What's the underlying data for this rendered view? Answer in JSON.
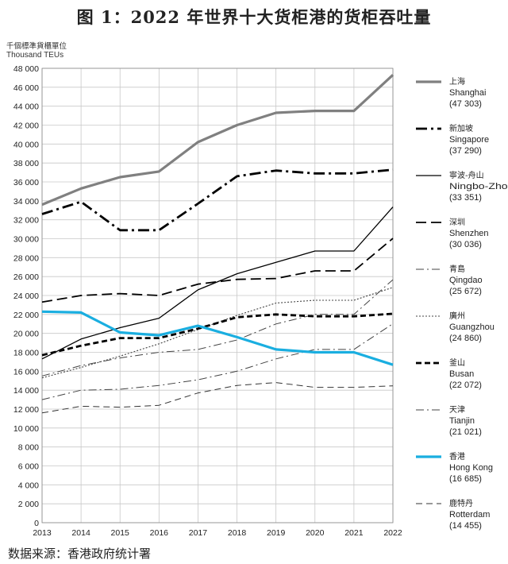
{
  "title": "图 1：2022 年世界十大货柜港的货柜吞吐量",
  "unit_cn": "千個標準貨櫃單位",
  "unit_en": "Thousand TEUs",
  "source": "数据来源：香港政府统计署",
  "chart_data": {
    "type": "line",
    "title": "图 1：2022 年世界十大货柜港的货柜吞吐量",
    "ylabel": "Thousand TEUs",
    "xlabel": "",
    "ylim": [
      0,
      48000
    ],
    "yticks": [
      0,
      2000,
      4000,
      6000,
      8000,
      10000,
      12000,
      14000,
      16000,
      18000,
      20000,
      22000,
      24000,
      26000,
      28000,
      30000,
      32000,
      34000,
      36000,
      38000,
      40000,
      42000,
      44000,
      46000,
      48000
    ],
    "ytick_labels": [
      "0",
      "2 000",
      "4 000",
      "6 000",
      "8 000",
      "10 000",
      "12 000",
      "14 000",
      "16 000",
      "18 000",
      "20 000",
      "22 000",
      "24 000",
      "26 000",
      "28 000",
      "30 000",
      "32 000",
      "34 000",
      "36 000",
      "38 000",
      "40 000",
      "42 000",
      "44 000",
      "46 000",
      "48 000"
    ],
    "x": [
      "2013",
      "2014",
      "2015",
      "2016",
      "2017",
      "2018",
      "2019",
      "2020",
      "2021",
      "2022"
    ],
    "grid": true,
    "legend": "right",
    "series": [
      {
        "name_cn": "上海",
        "name_en": "Shanghai",
        "value_label": "(47 303)",
        "color": "#808080",
        "style": "solid-thick",
        "values": [
          33600,
          35300,
          36500,
          37100,
          40200,
          42000,
          43300,
          43500,
          43500,
          47303
        ]
      },
      {
        "name_cn": "新加坡",
        "name_en": "Singapore",
        "value_label": "(37 290)",
        "color": "#000000",
        "style": "dashdot-thick",
        "values": [
          32600,
          33900,
          30900,
          30900,
          33700,
          36600,
          37200,
          36900,
          36900,
          37290
        ]
      },
      {
        "name_cn": "寧波-舟山",
        "name_en": "Ningbo-Zhoushan",
        "value_label": "(33 351)",
        "color": "#000000",
        "style": "solid-thin",
        "values": [
          17300,
          19400,
          20600,
          21600,
          24600,
          26300,
          27500,
          28700,
          28700,
          33351
        ]
      },
      {
        "name_cn": "深圳",
        "name_en": "Shenzhen",
        "value_label": "(30 036)",
        "color": "#000000",
        "style": "longdash",
        "values": [
          23300,
          24000,
          24200,
          24000,
          25200,
          25700,
          25800,
          26600,
          26600,
          30036
        ]
      },
      {
        "name_cn": "青島",
        "name_en": "Qingdao",
        "value_label": "(25 672)",
        "color": "#444444",
        "style": "dashdot-thin",
        "values": [
          15500,
          16600,
          17400,
          18000,
          18300,
          19300,
          21000,
          22000,
          22000,
          25672
        ]
      },
      {
        "name_cn": "廣州",
        "name_en": "Guangzhou",
        "value_label": "(24 860)",
        "color": "#444444",
        "style": "dotted",
        "values": [
          15300,
          16400,
          17600,
          18900,
          20400,
          21900,
          23200,
          23500,
          23500,
          24860
        ]
      },
      {
        "name_cn": "釜山",
        "name_en": "Busan",
        "value_label": "(22 072)",
        "color": "#000000",
        "style": "dashed-thick",
        "values": [
          17700,
          18700,
          19500,
          19500,
          20500,
          21700,
          22000,
          21800,
          21800,
          22072
        ]
      },
      {
        "name_cn": "天津",
        "name_en": "Tianjin",
        "value_label": "(21 021)",
        "color": "#444444",
        "style": "dashdot-thin",
        "values": [
          13000,
          14000,
          14100,
          14500,
          15100,
          16000,
          17300,
          18300,
          18300,
          21021
        ]
      },
      {
        "name_cn": "香港",
        "name_en": "Hong Kong",
        "value_label": "(16 685)",
        "color": "#1aaee0",
        "style": "solid-thick",
        "values": [
          22300,
          22200,
          20100,
          19800,
          20800,
          19600,
          18300,
          18000,
          18000,
          16685
        ]
      },
      {
        "name_cn": "鹿特丹",
        "name_en": "Rotterdam",
        "value_label": "(14 455)",
        "color": "#333333",
        "style": "dashed-thin",
        "values": [
          11600,
          12300,
          12200,
          12400,
          13700,
          14500,
          14800,
          14300,
          14300,
          14455
        ]
      }
    ]
  }
}
